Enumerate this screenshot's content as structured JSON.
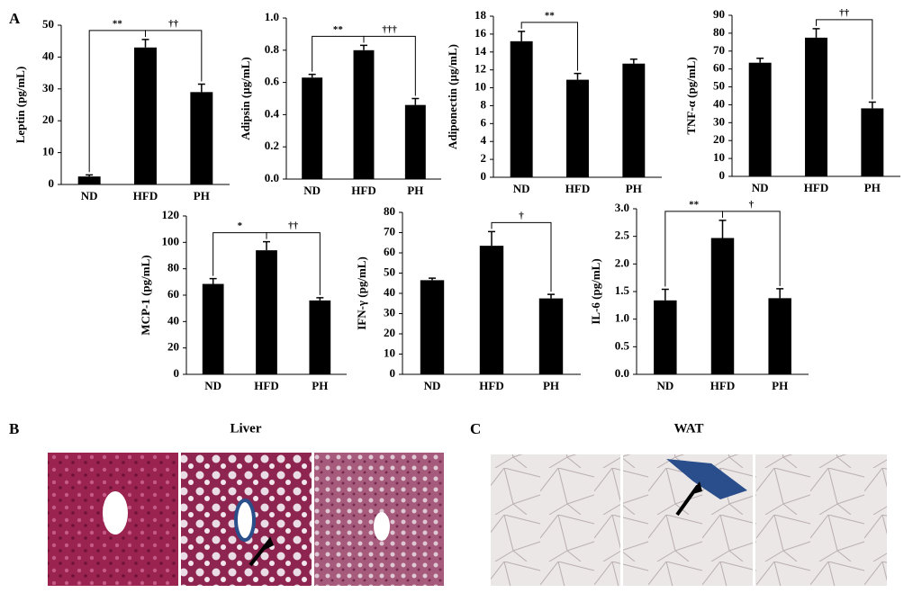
{
  "panel_labels": [
    "A",
    "B",
    "C"
  ],
  "image_titles": [
    "Liver",
    "WAT"
  ],
  "chart_data": [
    {
      "type": "bar",
      "y_label": "Leptin (pg/mL)",
      "categories": [
        "ND",
        "HFD",
        "PH"
      ],
      "values": [
        2.5,
        43,
        29
      ],
      "errors": [
        0.5,
        2.5,
        2.5
      ],
      "color": "#000000",
      "ylim": [
        0,
        50
      ],
      "yticks": [
        0,
        10,
        20,
        30,
        40,
        50
      ],
      "annotations": [
        {
          "text": "**",
          "pair": [
            0,
            1
          ]
        },
        {
          "text": "††",
          "pair": [
            1,
            2
          ]
        }
      ]
    },
    {
      "type": "bar",
      "y_label": "Adipsin (µg/mL)",
      "categories": [
        "ND",
        "HFD",
        "PH"
      ],
      "values": [
        0.63,
        0.8,
        0.46
      ],
      "errors": [
        0.02,
        0.03,
        0.04
      ],
      "color": "#000000",
      "ylim": [
        0,
        1
      ],
      "yticks": [
        {
          "value": 0,
          "label": "0.0"
        },
        0.2,
        0.4,
        0.6,
        0.8,
        {
          "value": 1,
          "label": "1.0"
        }
      ],
      "annotations": [
        {
          "text": "**",
          "pair": [
            0,
            1
          ]
        },
        {
          "text": "†††",
          "pair": [
            1,
            2
          ]
        }
      ]
    },
    {
      "type": "bar",
      "y_label": "Adiponectin (µg/mL)",
      "categories": [
        "ND",
        "HFD",
        "PH"
      ],
      "values": [
        15.2,
        10.9,
        12.7
      ],
      "errors": [
        1.1,
        0.7,
        0.5
      ],
      "color": "#000000",
      "ylim": [
        0,
        18
      ],
      "yticks": [
        0,
        2,
        4,
        6,
        8,
        10,
        12,
        14,
        16,
        18
      ],
      "annotations": [
        {
          "text": "**",
          "pair": [
            0,
            1
          ]
        }
      ]
    },
    {
      "type": "bar",
      "y_label": "TNF-α (pg/mL)",
      "categories": [
        "ND",
        "HFD",
        "PH"
      ],
      "values": [
        63.5,
        77.5,
        38
      ],
      "errors": [
        2.5,
        5,
        3.5
      ],
      "color": "#000000",
      "ylim": [
        0,
        90
      ],
      "yticks": [
        0,
        10,
        20,
        30,
        40,
        50,
        60,
        70,
        80,
        90
      ],
      "annotations": [
        {
          "text": "††",
          "pair": [
            1,
            2
          ]
        }
      ]
    },
    {
      "type": "bar",
      "y_label": "MCP-1 (pg/mL)",
      "categories": [
        "ND",
        "HFD",
        "PH"
      ],
      "values": [
        68.5,
        94,
        56
      ],
      "errors": [
        4,
        6.5,
        2
      ],
      "color": "#000000",
      "ylim": [
        0,
        120
      ],
      "yticks": [
        0,
        20,
        40,
        60,
        80,
        100,
        120
      ],
      "annotations": [
        {
          "text": "*",
          "pair": [
            0,
            1
          ]
        },
        {
          "text": "††",
          "pair": [
            1,
            2
          ]
        }
      ]
    },
    {
      "type": "bar",
      "y_label": "IFN-γ (pg/mL)",
      "categories": [
        "ND",
        "HFD",
        "PH"
      ],
      "values": [
        46.5,
        63.5,
        37.5
      ],
      "errors": [
        1,
        7,
        2
      ],
      "color": "#000000",
      "ylim": [
        0,
        80
      ],
      "yticks": [
        0,
        10,
        20,
        30,
        40,
        50,
        60,
        70,
        80
      ],
      "annotations": [
        {
          "text": "†",
          "pair": [
            1,
            2
          ]
        }
      ]
    },
    {
      "type": "bar",
      "y_label": "IL-6 (pg/mL)",
      "categories": [
        "ND",
        "HFD",
        "PH"
      ],
      "values": [
        1.34,
        2.47,
        1.38
      ],
      "errors": [
        0.2,
        0.32,
        0.17
      ],
      "color": "#000000",
      "ylim": [
        0,
        3
      ],
      "yticks": [
        {
          "value": 0,
          "label": "0.0"
        },
        0.5,
        {
          "value": 1,
          "label": "1.0"
        },
        1.5,
        {
          "value": 2,
          "label": "2.0"
        },
        2.5,
        {
          "value": 3,
          "label": "3.0"
        }
      ],
      "annotations": [
        {
          "text": "**",
          "pair": [
            0,
            1
          ]
        },
        {
          "text": "†",
          "pair": [
            1,
            2
          ]
        }
      ]
    }
  ]
}
